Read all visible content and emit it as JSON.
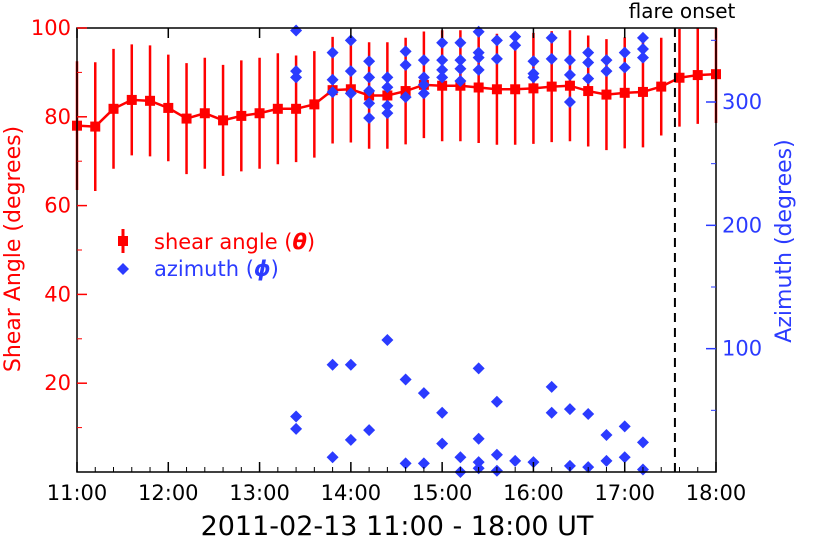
{
  "chart_data": {
    "type": "scatter",
    "xlabel": "2011-02-13 11:00 - 18:00 UT",
    "x_tick_labels": [
      "11:00",
      "12:00",
      "13:00",
      "14:00",
      "15:00",
      "16:00",
      "17:00",
      "18:00"
    ],
    "x_ticks_hours": [
      11,
      12,
      13,
      14,
      15,
      16,
      17,
      18
    ],
    "xlim_hours": [
      11,
      18
    ],
    "ylabel_left": "Shear Angle (degrees)",
    "ylim_left": [
      0,
      100
    ],
    "y_ticks_left": [
      20,
      40,
      60,
      80,
      100
    ],
    "y_tick_labels_left": [
      "20",
      "40",
      "60",
      "80",
      "100"
    ],
    "ylabel_right": "Azimuth (degrees)",
    "ylim_right": [
      0,
      360
    ],
    "y_ticks_right": [
      100,
      200,
      300
    ],
    "y_tick_labels_right": [
      "100",
      "200",
      "300"
    ],
    "annotation": {
      "label": "flare onset",
      "x_hours": 17.55
    },
    "legend": {
      "shear_label_prefix": "shear angle (",
      "shear_symbol": "θ",
      "azimuth_label_prefix": "azimuth (",
      "azimuth_symbol": "ϕ",
      "label_suffix": ")"
    },
    "colors": {
      "shear": "#ff0000",
      "azimuth": "#2b3bff",
      "axis": "#000000"
    },
    "series": [
      {
        "name": "shear angle (θ)",
        "axis": "left",
        "marker": "square",
        "x_hours": [
          11.0,
          11.2,
          11.4,
          11.6,
          11.8,
          12.0,
          12.2,
          12.4,
          12.6,
          12.8,
          13.0,
          13.2,
          13.4,
          13.6,
          13.8,
          14.0,
          14.2,
          14.4,
          14.6,
          14.8,
          15.0,
          15.2,
          15.4,
          15.6,
          15.8,
          16.0,
          16.2,
          16.4,
          16.6,
          16.8,
          17.0,
          17.2,
          17.4,
          17.6,
          17.8,
          18.0
        ],
        "values": [
          78.0,
          77.8,
          81.8,
          83.8,
          83.6,
          82.0,
          79.6,
          80.8,
          79.2,
          80.2,
          80.8,
          81.8,
          81.8,
          82.8,
          86.0,
          86.2,
          84.8,
          84.8,
          85.8,
          87.2,
          87.0,
          87.0,
          86.6,
          86.2,
          86.2,
          86.4,
          86.8,
          87.0,
          85.8,
          85.0,
          85.4,
          85.6,
          86.8,
          88.8,
          89.4,
          89.6
        ],
        "error": [
          14.5,
          14.5,
          13.5,
          12.5,
          12.5,
          12.0,
          12.5,
          12.5,
          12.5,
          12.5,
          12.5,
          12.5,
          12.0,
          12.0,
          12.0,
          12.0,
          12.0,
          12.0,
          12.0,
          12.0,
          12.5,
          12.5,
          12.5,
          12.5,
          12.5,
          12.5,
          12.5,
          12.5,
          12.5,
          12.5,
          12.5,
          12.5,
          11.0,
          11.0,
          11.0,
          11.0
        ]
      },
      {
        "name": "azimuth (ϕ)",
        "axis": "right",
        "marker": "diamond",
        "points": [
          [
            13.4,
            358
          ],
          [
            13.4,
            325
          ],
          [
            13.4,
            320
          ],
          [
            13.4,
            45
          ],
          [
            13.4,
            35
          ],
          [
            13.8,
            340
          ],
          [
            13.8,
            318
          ],
          [
            13.8,
            308
          ],
          [
            13.8,
            87
          ],
          [
            13.8,
            12
          ],
          [
            14.0,
            350
          ],
          [
            14.0,
            325
          ],
          [
            14.0,
            307
          ],
          [
            14.0,
            87
          ],
          [
            14.0,
            26
          ],
          [
            14.2,
            333
          ],
          [
            14.2,
            320
          ],
          [
            14.2,
            309
          ],
          [
            14.2,
            299
          ],
          [
            14.2,
            287
          ],
          [
            14.2,
            34
          ],
          [
            14.4,
            320
          ],
          [
            14.4,
            312
          ],
          [
            14.4,
            297
          ],
          [
            14.4,
            291
          ],
          [
            14.4,
            107
          ],
          [
            14.6,
            341
          ],
          [
            14.6,
            330
          ],
          [
            14.6,
            304
          ],
          [
            14.6,
            75
          ],
          [
            14.6,
            7
          ],
          [
            14.8,
            334
          ],
          [
            14.8,
            320
          ],
          [
            14.8,
            314
          ],
          [
            14.8,
            307
          ],
          [
            14.8,
            64
          ],
          [
            14.8,
            7
          ],
          [
            15.0,
            348
          ],
          [
            15.0,
            334
          ],
          [
            15.0,
            326
          ],
          [
            15.0,
            320
          ],
          [
            15.0,
            48
          ],
          [
            15.0,
            23
          ],
          [
            15.2,
            348
          ],
          [
            15.2,
            334
          ],
          [
            15.2,
            327
          ],
          [
            15.2,
            317
          ],
          [
            15.2,
            12
          ],
          [
            15.2,
            0
          ],
          [
            15.4,
            357
          ],
          [
            15.4,
            340
          ],
          [
            15.4,
            336
          ],
          [
            15.4,
            326
          ],
          [
            15.4,
            84
          ],
          [
            15.4,
            27
          ],
          [
            15.4,
            8
          ],
          [
            15.4,
            3
          ],
          [
            15.6,
            350
          ],
          [
            15.6,
            335
          ],
          [
            15.6,
            57
          ],
          [
            15.6,
            14
          ],
          [
            15.6,
            1
          ],
          [
            15.8,
            353
          ],
          [
            15.8,
            346
          ],
          [
            15.8,
            9
          ],
          [
            16.0,
            333
          ],
          [
            16.0,
            323
          ],
          [
            16.0,
            320
          ],
          [
            16.0,
            8
          ],
          [
            16.2,
            352
          ],
          [
            16.2,
            335
          ],
          [
            16.2,
            69
          ],
          [
            16.2,
            48
          ],
          [
            16.4,
            334
          ],
          [
            16.4,
            322
          ],
          [
            16.4,
            300
          ],
          [
            16.4,
            51
          ],
          [
            16.4,
            5
          ],
          [
            16.6,
            340
          ],
          [
            16.6,
            332
          ],
          [
            16.6,
            319
          ],
          [
            16.6,
            47
          ],
          [
            16.6,
            4
          ],
          [
            16.8,
            334
          ],
          [
            16.8,
            325
          ],
          [
            16.8,
            30
          ],
          [
            16.8,
            9
          ],
          [
            17.0,
            340
          ],
          [
            17.0,
            328
          ],
          [
            17.0,
            37
          ],
          [
            17.0,
            12
          ],
          [
            17.2,
            352
          ],
          [
            17.2,
            343
          ],
          [
            17.2,
            336
          ],
          [
            17.2,
            24
          ],
          [
            17.2,
            2
          ]
        ]
      }
    ]
  }
}
